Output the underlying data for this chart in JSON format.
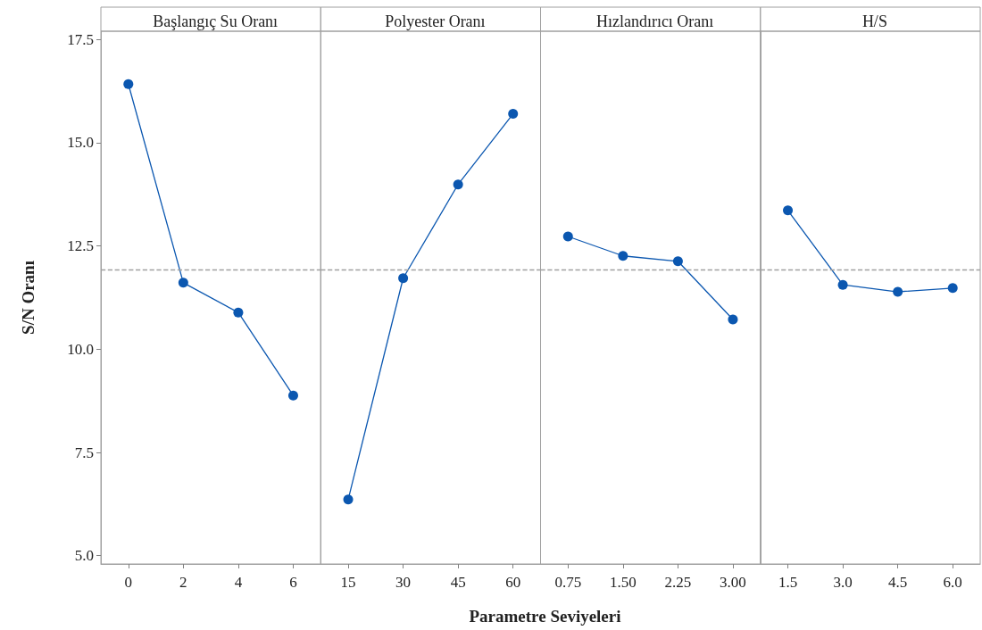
{
  "chart_data": [
    {
      "type": "line",
      "title": "Başlangıç Su Oranı",
      "ylabel": "S/N Oranı",
      "categories": [
        "0",
        "2",
        "4",
        "6"
      ],
      "values": [
        16.42,
        11.61,
        10.89,
        8.88
      ],
      "color": "#0b57b0",
      "marker": "circle",
      "line_style": "solid",
      "ylim": [
        4.8,
        17.7
      ],
      "yticks": [
        {
          "value": 5,
          "label": "5.0"
        },
        {
          "value": 7.5,
          "label": "7.5"
        },
        {
          "value": 10,
          "label": "10.0"
        },
        {
          "value": 12.5,
          "label": "12.5"
        },
        {
          "value": 15,
          "label": "15.0"
        },
        {
          "value": 17.5,
          "label": "17.5"
        }
      ],
      "grid": false,
      "ref_lines": [
        {
          "axis": "y",
          "value": 11.93,
          "color": "#a0a0a0",
          "line_style": "dashed"
        }
      ]
    },
    {
      "type": "line",
      "title": "Polyester Oranı",
      "xlabel": "Parametre Seviyeleri",
      "categories": [
        "15",
        "30",
        "45",
        "60"
      ],
      "values": [
        6.36,
        11.72,
        13.99,
        15.7
      ],
      "color": "#0b57b0",
      "marker": "circle",
      "line_style": "solid",
      "ylim": [
        4.8,
        17.7
      ],
      "tick_labels": "x",
      "grid": false,
      "ref_lines": [
        {
          "axis": "y",
          "value": 11.93,
          "color": "#a0a0a0",
          "line_style": "dashed"
        }
      ]
    },
    {
      "type": "line",
      "title": "Hızlandırıcı Oranı",
      "categories": [
        "0.75",
        "1.50",
        "2.25",
        "3.00"
      ],
      "values": [
        12.73,
        12.26,
        12.13,
        10.72
      ],
      "color": "#0b57b0",
      "marker": "circle",
      "line_style": "solid",
      "ylim": [
        4.8,
        17.7
      ],
      "tick_labels": "x",
      "grid": false,
      "ref_lines": [
        {
          "axis": "y",
          "value": 11.93,
          "color": "#a0a0a0",
          "line_style": "dashed"
        }
      ]
    },
    {
      "type": "line",
      "title": "H/S",
      "categories": [
        "1.5",
        "3.0",
        "4.5",
        "6.0"
      ],
      "values": [
        13.36,
        11.56,
        11.39,
        11.48
      ],
      "color": "#0b57b0",
      "marker": "circle",
      "line_style": "solid",
      "ylim": [
        4.8,
        17.7
      ],
      "tick_labels": "x",
      "grid": false,
      "ref_lines": [
        {
          "axis": "y",
          "value": 11.93,
          "color": "#a0a0a0",
          "line_style": "dashed"
        }
      ]
    }
  ]
}
